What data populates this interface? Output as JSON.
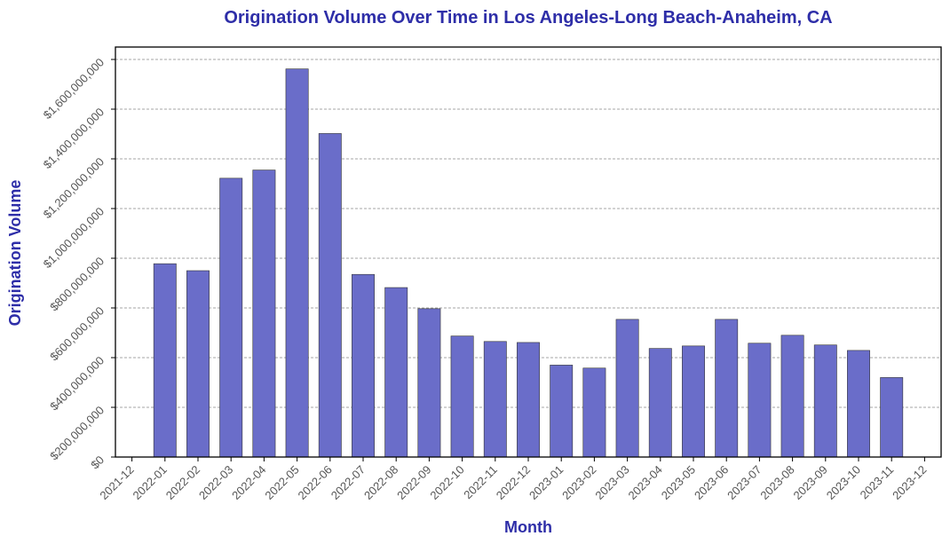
{
  "colors": {
    "bar": "#6a6dc9",
    "barEdge": "#333333",
    "title": "#2e2ea8",
    "grid": "#888888",
    "tick": "#555555"
  },
  "chart_data": {
    "type": "bar",
    "title": "Origination Volume Over Time in Los Angeles-Long Beach-Anaheim, CA",
    "xlabel": "Month",
    "ylabel": "Origination Volume",
    "ylim": [
      0,
      1650000000
    ],
    "grid": true,
    "y_ticks": [
      {
        "value": 0,
        "label": "$0"
      },
      {
        "value": 200000000,
        "label": "$200,000,000"
      },
      {
        "value": 400000000,
        "label": "$400,000,000"
      },
      {
        "value": 600000000,
        "label": "$600,000,000"
      },
      {
        "value": 800000000,
        "label": "$800,000,000"
      },
      {
        "value": 1000000000,
        "label": "$1,000,000,000"
      },
      {
        "value": 1200000000,
        "label": "$1,200,000,000"
      },
      {
        "value": 1400000000,
        "label": "$1,400,000,000"
      },
      {
        "value": 1600000000,
        "label": "$1,600,000,000"
      }
    ],
    "x_ticks": [
      "2021-12",
      "2022-01",
      "2022-02",
      "2022-03",
      "2022-04",
      "2022-05",
      "2022-06",
      "2022-07",
      "2022-08",
      "2022-09",
      "2022-10",
      "2022-11",
      "2022-12",
      "2023-01",
      "2023-02",
      "2023-03",
      "2023-04",
      "2023-05",
      "2023-06",
      "2023-07",
      "2023-08",
      "2023-09",
      "2023-10",
      "2023-11",
      "2023-12"
    ],
    "categories": [
      "2022-01",
      "2022-02",
      "2022-03",
      "2022-04",
      "2022-05",
      "2022-06",
      "2022-07",
      "2022-08",
      "2022-09",
      "2022-10",
      "2022-11",
      "2022-12",
      "2023-01",
      "2023-02",
      "2023-03",
      "2023-04",
      "2023-05",
      "2023-06",
      "2023-07",
      "2023-08",
      "2023-09",
      "2023-10",
      "2023-11"
    ],
    "values": [
      778000000,
      750000000,
      1122000000,
      1155000000,
      1562000000,
      1302000000,
      735000000,
      682000000,
      597000000,
      487000000,
      465000000,
      461000000,
      370000000,
      358000000,
      554000000,
      437000000,
      447000000,
      554000000,
      458000000,
      490000000,
      451000000,
      429000000,
      320000000
    ]
  }
}
